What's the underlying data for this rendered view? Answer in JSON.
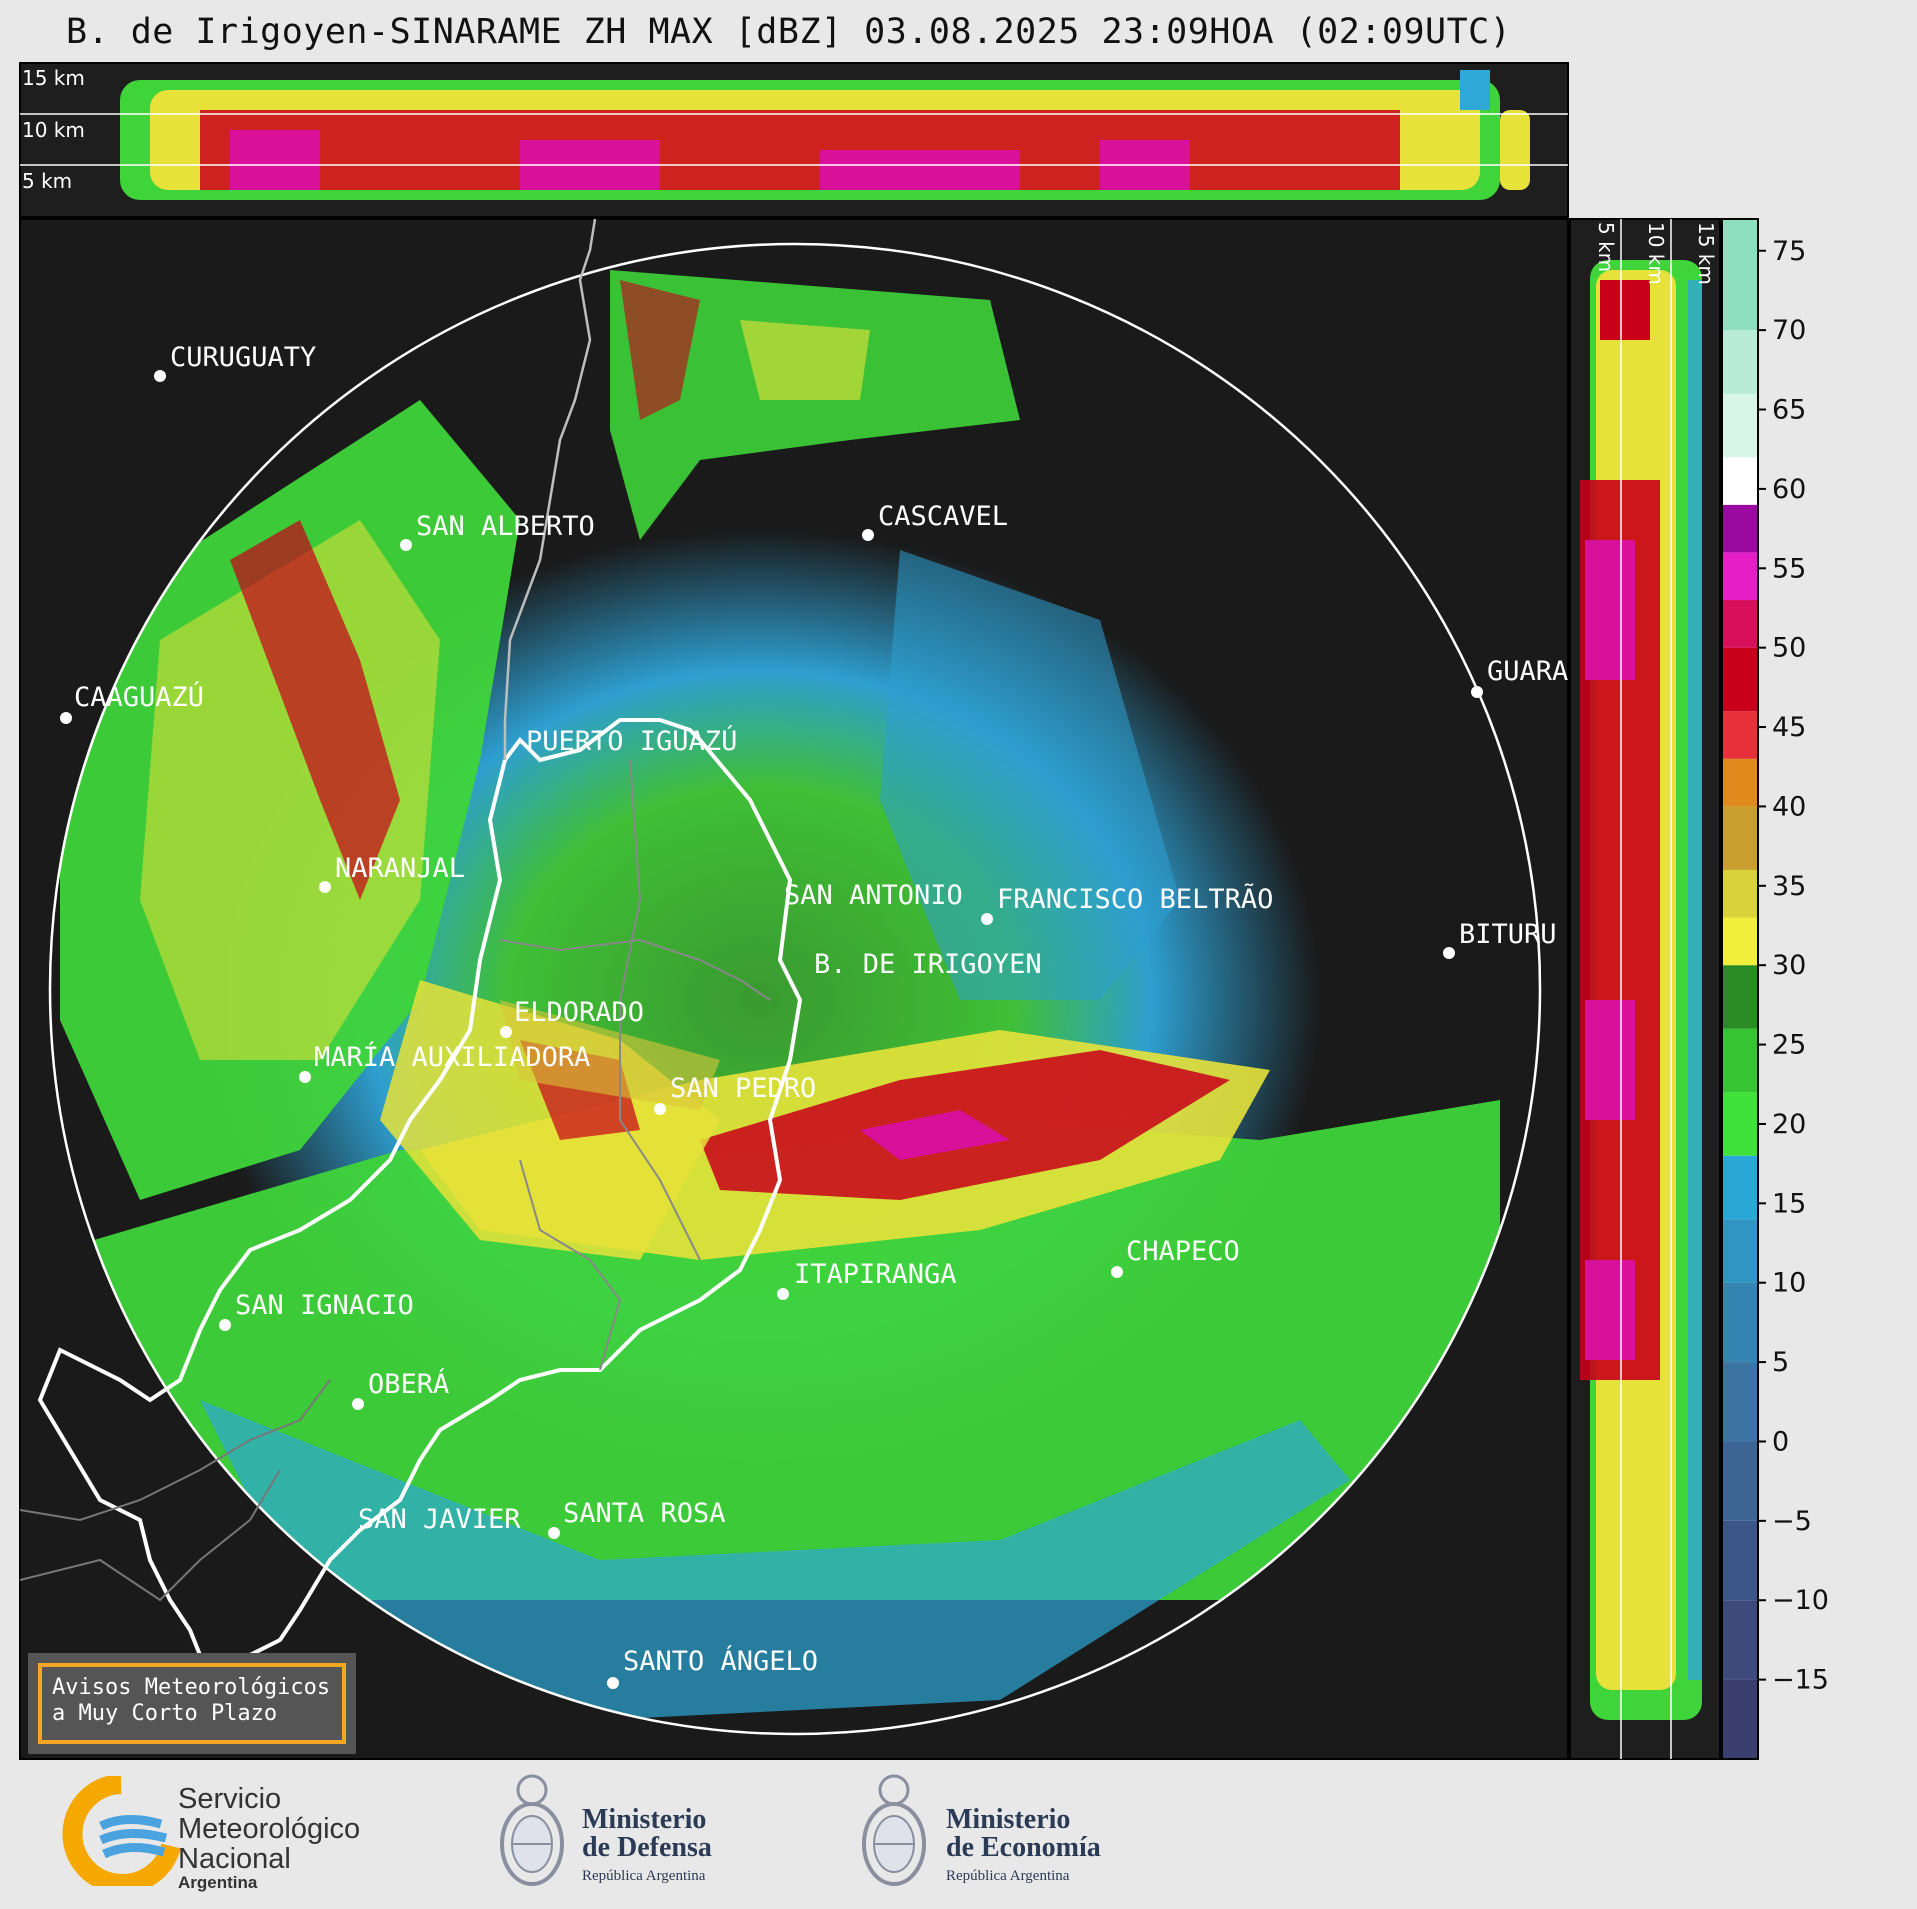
{
  "title": "B. de Irigoyen-SINARAME ZH MAX [dBZ] 03.08.2025 23:09HOA (02:09UTC)",
  "top_panel": {
    "height_labels": [
      "15 km",
      "10 km",
      "5 km"
    ]
  },
  "side_panel": {
    "height_labels": [
      "5 km",
      "10 km",
      "15 km"
    ]
  },
  "colorbar": {
    "ticks": [
      "75",
      "70",
      "65",
      "60",
      "55",
      "50",
      "45",
      "40",
      "35",
      "30",
      "25",
      "20",
      "15",
      "10",
      "5",
      "0",
      "−5",
      "−10",
      "−15"
    ],
    "range_dbz": [
      -20,
      77
    ],
    "bands": [
      {
        "from": -20,
        "to": -15,
        "color": "#3b3f6e"
      },
      {
        "from": -15,
        "to": -10,
        "color": "#3c4a7c"
      },
      {
        "from": -10,
        "to": -5,
        "color": "#3d5688"
      },
      {
        "from": -5,
        "to": 0,
        "color": "#3d6594"
      },
      {
        "from": 0,
        "to": 5,
        "color": "#3b74a2"
      },
      {
        "from": 5,
        "to": 10,
        "color": "#3584b2"
      },
      {
        "from": 10,
        "to": 14,
        "color": "#2f96c4"
      },
      {
        "from": 14,
        "to": 18,
        "color": "#29a8d6"
      },
      {
        "from": 18,
        "to": 22,
        "color": "#3fe23a"
      },
      {
        "from": 22,
        "to": 26,
        "color": "#36c432"
      },
      {
        "from": 26,
        "to": 30,
        "color": "#2a8a24"
      },
      {
        "from": 30,
        "to": 33,
        "color": "#f1ee3c"
      },
      {
        "from": 33,
        "to": 36,
        "color": "#d9d23a"
      },
      {
        "from": 36,
        "to": 40,
        "color": "#c9a030"
      },
      {
        "from": 40,
        "to": 43,
        "color": "#e08a1e"
      },
      {
        "from": 43,
        "to": 46,
        "color": "#e8303a"
      },
      {
        "from": 46,
        "to": 50,
        "color": "#c8001a"
      },
      {
        "from": 50,
        "to": 53,
        "color": "#d8105a"
      },
      {
        "from": 53,
        "to": 56,
        "color": "#e61ec8"
      },
      {
        "from": 56,
        "to": 59,
        "color": "#9a0a9e"
      },
      {
        "from": 59,
        "to": 62,
        "color": "#ffffff"
      },
      {
        "from": 62,
        "to": 66,
        "color": "#d8f5ea"
      },
      {
        "from": 66,
        "to": 70,
        "color": "#b8ecd6"
      },
      {
        "from": 70,
        "to": 77,
        "color": "#8ddfbf"
      }
    ]
  },
  "cities": [
    {
      "name": "CURUGUATY"
    },
    {
      "name": "SAN ALBERTO"
    },
    {
      "name": "CASCAVEL"
    },
    {
      "name": "CAAGUAZÚ"
    },
    {
      "name": "GUARA"
    },
    {
      "name": "PUERTO IGUAZÚ"
    },
    {
      "name": "NARANJAL"
    },
    {
      "name": "SAN ANTONIO"
    },
    {
      "name": "FRANCISCO BELTRÃO"
    },
    {
      "name": "BITURU"
    },
    {
      "name": "B. DE IRIGOYEN"
    },
    {
      "name": "ELDORADO"
    },
    {
      "name": "MARÍA AUXILIADORA"
    },
    {
      "name": "SAN PEDRO"
    },
    {
      "name": "CHAPECO"
    },
    {
      "name": "ITAPIRANGA"
    },
    {
      "name": "SAN IGNACIO"
    },
    {
      "name": "OBERÁ"
    },
    {
      "name": "SAN JAVIER"
    },
    {
      "name": "SANTA ROSA"
    },
    {
      "name": "SANTO ÁNGELO"
    }
  ],
  "notice": {
    "line1": "Avisos Meteorológicos",
    "line2": "a Muy Corto Plazo"
  },
  "logos": {
    "smn": {
      "line1": "Servicio",
      "line2": "Meteorológico",
      "line3": "Nacional",
      "line4": "Argentina"
    },
    "defensa": {
      "line1": "Ministerio",
      "line2": "de Defensa",
      "line3": "República Argentina"
    },
    "economia": {
      "line1": "Ministerio",
      "line2": "de Economía",
      "line3": "República Argentina"
    }
  }
}
